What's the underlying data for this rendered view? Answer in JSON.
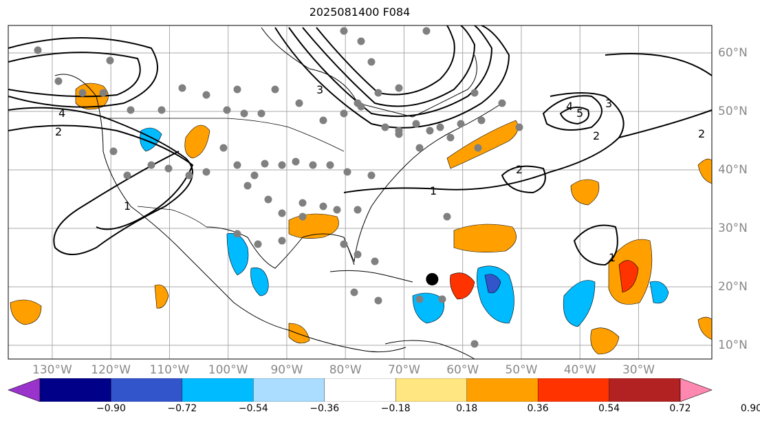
{
  "title": "2025081400 F084",
  "longitude_labels": [
    "130°W",
    "120°W",
    "110°W",
    "100°W",
    "90°W",
    "80°W",
    "70°W",
    "60°W",
    "50°W",
    "40°W",
    "30°W"
  ],
  "latitude_labels": [
    "60°N",
    "50°N",
    "40°N",
    "30°N",
    "20°N",
    "10°N"
  ],
  "colorbar": {
    "ticks": [
      "−0.90",
      "−0.72",
      "−0.54",
      "−0.36",
      "−0.18",
      "0.18",
      "0.36",
      "0.54",
      "0.72",
      "0.90"
    ],
    "colors": [
      "#9933cc",
      "#000088",
      "#3355cc",
      "#00bbff",
      "#aaddff",
      "#ffffff",
      "#ffe680",
      "#ffa000",
      "#ff3300",
      "#b22222",
      "#ff88b0"
    ]
  },
  "contour_labels": [
    "1",
    "1",
    "2",
    "2",
    "2",
    "3",
    "3",
    "4",
    "4",
    "5",
    "1",
    "2"
  ],
  "marker": {
    "lon": -65.2,
    "lat": 21.3
  }
}
